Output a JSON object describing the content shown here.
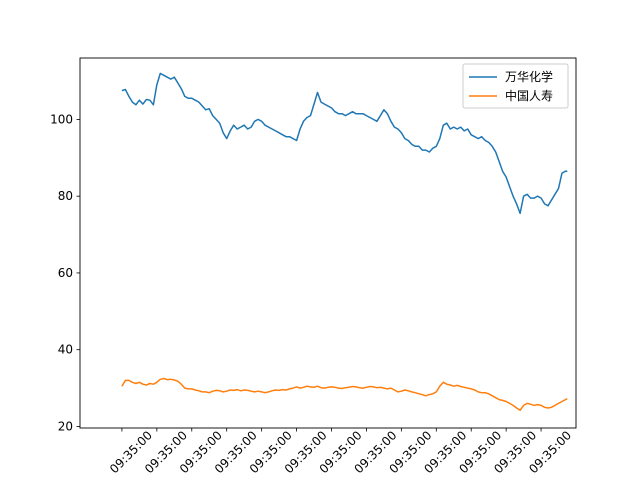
{
  "chart_data": {
    "type": "line",
    "title": "",
    "xlabel": "",
    "ylabel": "",
    "x_tick_labels": [
      "09:35:00",
      "09:35:00",
      "09:35:00",
      "09:35:00",
      "09:35:00",
      "09:35:00",
      "09:35:00",
      "09:35:00",
      "09:35:00",
      "09:35:00",
      "09:35:00",
      "09:35:00",
      "09:35:00"
    ],
    "xlim": [
      -1.2,
      13.0
    ],
    "ylim": [
      19.6,
      116.0
    ],
    "y_ticks": [
      20,
      40,
      60,
      80,
      100
    ],
    "grid": false,
    "legend": "upper right",
    "series": [
      {
        "name": "万华化学",
        "color": "#1f77b4",
        "points": [
          [
            0.0,
            107.5
          ],
          [
            0.1,
            107.8
          ],
          [
            0.2,
            106.0
          ],
          [
            0.3,
            104.5
          ],
          [
            0.4,
            103.8
          ],
          [
            0.5,
            105.0
          ],
          [
            0.6,
            104.0
          ],
          [
            0.7,
            105.2
          ],
          [
            0.8,
            105.0
          ],
          [
            0.9,
            103.8
          ],
          [
            1.0,
            109.0
          ],
          [
            1.1,
            112.0
          ],
          [
            1.2,
            111.5
          ],
          [
            1.3,
            111.0
          ],
          [
            1.4,
            110.5
          ],
          [
            1.5,
            111.0
          ],
          [
            1.6,
            109.5
          ],
          [
            1.7,
            108.0
          ],
          [
            1.8,
            106.0
          ],
          [
            1.9,
            105.5
          ],
          [
            2.0,
            105.5
          ],
          [
            2.1,
            105.0
          ],
          [
            2.2,
            104.5
          ],
          [
            2.3,
            103.5
          ],
          [
            2.4,
            102.5
          ],
          [
            2.5,
            102.8
          ],
          [
            2.6,
            101.0
          ],
          [
            2.7,
            100.0
          ],
          [
            2.8,
            99.0
          ],
          [
            2.9,
            96.5
          ],
          [
            3.0,
            95.0
          ],
          [
            3.1,
            97.0
          ],
          [
            3.2,
            98.5
          ],
          [
            3.3,
            97.5
          ],
          [
            3.4,
            98.0
          ],
          [
            3.5,
            98.5
          ],
          [
            3.6,
            97.5
          ],
          [
            3.7,
            98.0
          ],
          [
            3.8,
            99.5
          ],
          [
            3.9,
            100.0
          ],
          [
            4.0,
            99.5
          ],
          [
            4.1,
            98.5
          ],
          [
            4.2,
            98.0
          ],
          [
            4.3,
            97.5
          ],
          [
            4.4,
            97.0
          ],
          [
            4.5,
            96.5
          ],
          [
            4.6,
            96.0
          ],
          [
            4.7,
            95.5
          ],
          [
            4.8,
            95.5
          ],
          [
            4.9,
            95.0
          ],
          [
            5.0,
            94.5
          ],
          [
            5.1,
            97.5
          ],
          [
            5.2,
            99.5
          ],
          [
            5.3,
            100.5
          ],
          [
            5.4,
            101.0
          ],
          [
            5.5,
            104.0
          ],
          [
            5.6,
            107.0
          ],
          [
            5.7,
            104.5
          ],
          [
            5.8,
            104.0
          ],
          [
            5.9,
            103.5
          ],
          [
            6.0,
            103.0
          ],
          [
            6.1,
            102.0
          ],
          [
            6.2,
            101.5
          ],
          [
            6.3,
            101.5
          ],
          [
            6.4,
            101.0
          ],
          [
            6.5,
            101.5
          ],
          [
            6.6,
            102.0
          ],
          [
            6.7,
            101.5
          ],
          [
            6.8,
            101.5
          ],
          [
            6.9,
            101.5
          ],
          [
            7.0,
            101.0
          ],
          [
            7.1,
            100.5
          ],
          [
            7.2,
            100.0
          ],
          [
            7.3,
            99.5
          ],
          [
            7.4,
            101.0
          ],
          [
            7.5,
            102.5
          ],
          [
            7.6,
            101.5
          ],
          [
            7.7,
            99.5
          ],
          [
            7.8,
            98.0
          ],
          [
            7.9,
            97.5
          ],
          [
            8.0,
            96.5
          ],
          [
            8.1,
            95.0
          ],
          [
            8.2,
            94.5
          ],
          [
            8.3,
            93.5
          ],
          [
            8.4,
            93.0
          ],
          [
            8.5,
            93.0
          ],
          [
            8.6,
            92.0
          ],
          [
            8.7,
            92.0
          ],
          [
            8.8,
            91.5
          ],
          [
            8.9,
            92.5
          ],
          [
            9.0,
            93.0
          ],
          [
            9.1,
            95.0
          ],
          [
            9.2,
            98.5
          ],
          [
            9.3,
            99.0
          ],
          [
            9.4,
            97.5
          ],
          [
            9.5,
            98.0
          ],
          [
            9.6,
            97.5
          ],
          [
            9.7,
            98.0
          ],
          [
            9.8,
            97.0
          ],
          [
            9.9,
            97.5
          ],
          [
            10.0,
            96.0
          ],
          [
            10.1,
            95.5
          ],
          [
            10.2,
            95.0
          ],
          [
            10.3,
            95.5
          ],
          [
            10.4,
            94.5
          ],
          [
            10.5,
            94.0
          ],
          [
            10.6,
            93.0
          ],
          [
            10.7,
            91.5
          ],
          [
            10.8,
            89.0
          ],
          [
            10.9,
            86.5
          ],
          [
            11.0,
            85.0
          ],
          [
            11.1,
            82.5
          ],
          [
            11.2,
            80.0
          ],
          [
            11.3,
            78.0
          ],
          [
            11.4,
            75.5
          ],
          [
            11.5,
            80.0
          ],
          [
            11.6,
            80.5
          ],
          [
            11.7,
            79.5
          ],
          [
            11.8,
            79.5
          ],
          [
            11.9,
            80.0
          ],
          [
            12.0,
            79.5
          ],
          [
            12.1,
            78.0
          ],
          [
            12.2,
            77.5
          ],
          [
            12.3,
            79.0
          ],
          [
            12.4,
            80.5
          ],
          [
            12.5,
            82.0
          ],
          [
            12.6,
            86.0
          ],
          [
            12.7,
            86.5
          ],
          [
            12.75,
            86.5
          ]
        ]
      },
      {
        "name": "中国人寿",
        "color": "#ff7f0e",
        "points": [
          [
            0.0,
            30.5
          ],
          [
            0.1,
            32.0
          ],
          [
            0.2,
            32.0
          ],
          [
            0.3,
            31.5
          ],
          [
            0.4,
            31.2
          ],
          [
            0.5,
            31.5
          ],
          [
            0.6,
            31.0
          ],
          [
            0.7,
            30.8
          ],
          [
            0.8,
            31.2
          ],
          [
            0.9,
            31.0
          ],
          [
            1.0,
            31.5
          ],
          [
            1.1,
            32.3
          ],
          [
            1.2,
            32.5
          ],
          [
            1.3,
            32.2
          ],
          [
            1.4,
            32.3
          ],
          [
            1.5,
            32.1
          ],
          [
            1.6,
            31.8
          ],
          [
            1.7,
            31.0
          ],
          [
            1.8,
            30.0
          ],
          [
            1.9,
            29.8
          ],
          [
            2.0,
            29.8
          ],
          [
            2.1,
            29.5
          ],
          [
            2.2,
            29.3
          ],
          [
            2.3,
            29.0
          ],
          [
            2.4,
            29.0
          ],
          [
            2.5,
            28.8
          ],
          [
            2.6,
            29.2
          ],
          [
            2.7,
            29.4
          ],
          [
            2.8,
            29.3
          ],
          [
            2.9,
            29.0
          ],
          [
            3.0,
            29.2
          ],
          [
            3.1,
            29.5
          ],
          [
            3.2,
            29.4
          ],
          [
            3.3,
            29.6
          ],
          [
            3.4,
            29.3
          ],
          [
            3.5,
            29.5
          ],
          [
            3.6,
            29.4
          ],
          [
            3.7,
            29.2
          ],
          [
            3.8,
            29.0
          ],
          [
            3.9,
            29.2
          ],
          [
            4.0,
            29.0
          ],
          [
            4.1,
            28.8
          ],
          [
            4.2,
            29.0
          ],
          [
            4.3,
            29.3
          ],
          [
            4.4,
            29.5
          ],
          [
            4.5,
            29.4
          ],
          [
            4.6,
            29.6
          ],
          [
            4.7,
            29.5
          ],
          [
            4.8,
            29.8
          ],
          [
            4.9,
            30.0
          ],
          [
            5.0,
            30.3
          ],
          [
            5.1,
            30.0
          ],
          [
            5.2,
            30.2
          ],
          [
            5.3,
            30.5
          ],
          [
            5.4,
            30.3
          ],
          [
            5.5,
            30.2
          ],
          [
            5.6,
            30.5
          ],
          [
            5.7,
            30.1
          ],
          [
            5.8,
            30.0
          ],
          [
            5.9,
            30.2
          ],
          [
            6.0,
            30.3
          ],
          [
            6.1,
            30.2
          ],
          [
            6.2,
            30.0
          ],
          [
            6.3,
            29.9
          ],
          [
            6.4,
            30.1
          ],
          [
            6.5,
            30.2
          ],
          [
            6.6,
            30.4
          ],
          [
            6.7,
            30.3
          ],
          [
            6.8,
            30.1
          ],
          [
            6.9,
            30.0
          ],
          [
            7.0,
            30.2
          ],
          [
            7.1,
            30.4
          ],
          [
            7.2,
            30.3
          ],
          [
            7.3,
            30.1
          ],
          [
            7.4,
            30.2
          ],
          [
            7.5,
            30.0
          ],
          [
            7.6,
            29.8
          ],
          [
            7.7,
            30.0
          ],
          [
            7.8,
            29.5
          ],
          [
            7.9,
            29.0
          ],
          [
            8.0,
            29.2
          ],
          [
            8.1,
            29.5
          ],
          [
            8.2,
            29.3
          ],
          [
            8.3,
            29.0
          ],
          [
            8.4,
            28.8
          ],
          [
            8.5,
            28.5
          ],
          [
            8.6,
            28.3
          ],
          [
            8.7,
            28.0
          ],
          [
            8.8,
            28.3
          ],
          [
            8.9,
            28.5
          ],
          [
            9.0,
            29.0
          ],
          [
            9.1,
            30.5
          ],
          [
            9.2,
            31.5
          ],
          [
            9.3,
            31.0
          ],
          [
            9.4,
            30.8
          ],
          [
            9.5,
            30.5
          ],
          [
            9.6,
            30.7
          ],
          [
            9.7,
            30.4
          ],
          [
            9.8,
            30.2
          ],
          [
            9.9,
            30.0
          ],
          [
            10.0,
            29.8
          ],
          [
            10.1,
            29.5
          ],
          [
            10.2,
            29.0
          ],
          [
            10.3,
            28.8
          ],
          [
            10.4,
            28.8
          ],
          [
            10.5,
            28.5
          ],
          [
            10.6,
            28.0
          ],
          [
            10.7,
            27.5
          ],
          [
            10.8,
            27.0
          ],
          [
            10.9,
            26.8
          ],
          [
            11.0,
            26.5
          ],
          [
            11.1,
            26.0
          ],
          [
            11.2,
            25.5
          ],
          [
            11.3,
            24.8
          ],
          [
            11.4,
            24.2
          ],
          [
            11.5,
            25.5
          ],
          [
            11.6,
            26.0
          ],
          [
            11.7,
            25.8
          ],
          [
            11.8,
            25.5
          ],
          [
            11.9,
            25.7
          ],
          [
            12.0,
            25.5
          ],
          [
            12.1,
            25.0
          ],
          [
            12.2,
            24.8
          ],
          [
            12.3,
            25.0
          ],
          [
            12.4,
            25.5
          ],
          [
            12.5,
            26.0
          ],
          [
            12.6,
            26.5
          ],
          [
            12.7,
            27.0
          ],
          [
            12.75,
            27.2
          ]
        ]
      }
    ]
  }
}
